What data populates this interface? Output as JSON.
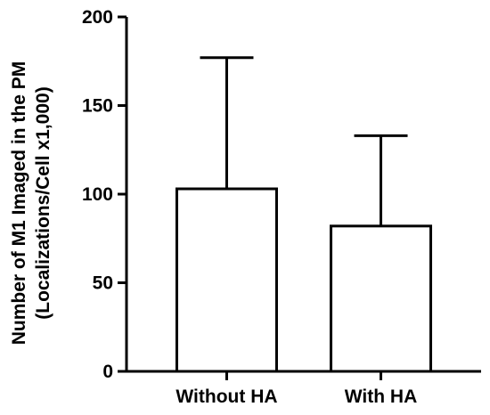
{
  "chart_data": {
    "type": "bar",
    "categories": [
      "Without HA",
      "With HA"
    ],
    "values": [
      103,
      82
    ],
    "error_upper": [
      177,
      133
    ],
    "ylabel_line1": "Number of M1 Imaged in the PM",
    "ylabel_line2": "(Localizations/Cell x1,000)",
    "xlabel": "",
    "ylim": [
      0,
      200
    ],
    "yticks": [
      0,
      50,
      100,
      150,
      200
    ],
    "bar_fill": "#ffffff",
    "stroke": "#000000",
    "grid": false
  }
}
